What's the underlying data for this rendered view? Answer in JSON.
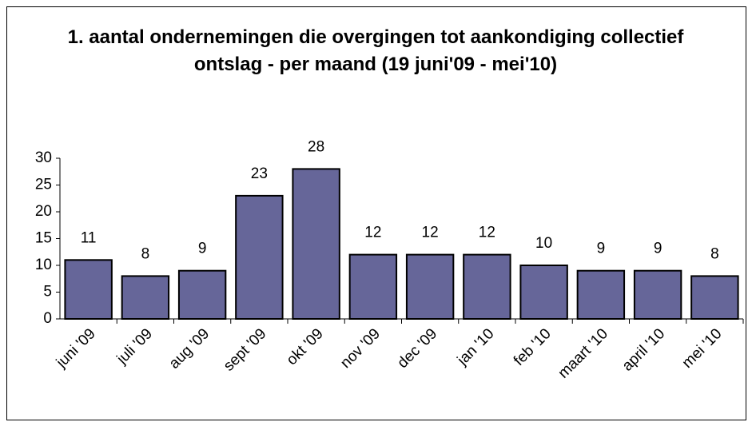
{
  "chart_data": {
    "type": "bar",
    "title": "1. aantal ondernemingen die overgingen tot aankondiging collectief ontslag - per maand (19 juni'09 - mei'10)",
    "categories": [
      "juni '09",
      "juli '09",
      "aug '09",
      "sept '09",
      "okt '09",
      "nov '09",
      "dec '09",
      "jan '10",
      "feb '10",
      "maart '10",
      "april '10",
      "mei '10"
    ],
    "values": [
      11,
      8,
      9,
      23,
      28,
      12,
      12,
      12,
      10,
      9,
      9,
      8
    ],
    "color": "#666699",
    "ylim": [
      0,
      30
    ],
    "yticks": [
      0,
      5,
      10,
      15,
      20,
      25,
      30
    ],
    "grid": false
  }
}
